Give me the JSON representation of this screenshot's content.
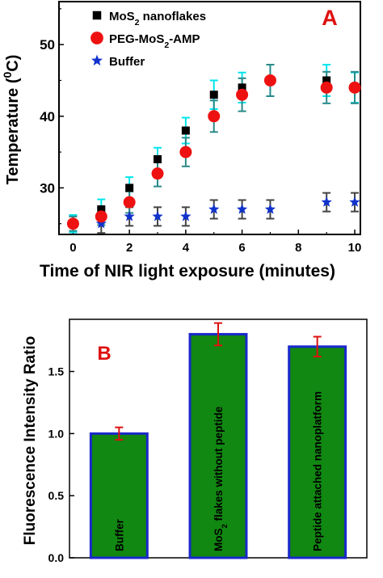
{
  "chart_data": [
    {
      "type": "scatter",
      "panel_label": "A",
      "xlabel": "Time of NIR light exposure (minutes)",
      "ylabel_parts": [
        "Temperature (",
        "0",
        "C)"
      ],
      "xlim": [
        -0.5,
        10.2
      ],
      "ylim": [
        23.5,
        56
      ],
      "xticks": [
        0,
        2,
        4,
        6,
        8,
        10
      ],
      "yticks": [
        30,
        40,
        50
      ],
      "legend_position": "top-left",
      "series": [
        {
          "name_parts": [
            "MoS",
            "2",
            " nanoflakes"
          ],
          "marker": "square",
          "color": "#000000",
          "error_color": "#00e5ee",
          "x": [
            0,
            1,
            2,
            3,
            4,
            5,
            6,
            7,
            9,
            10
          ],
          "y": [
            25,
            27,
            30,
            34,
            38,
            43,
            44,
            45,
            45,
            44
          ],
          "err": [
            1.2,
            1.4,
            1.5,
            1.6,
            1.8,
            2.0,
            2.1,
            2.2,
            2.2,
            2.1
          ]
        },
        {
          "name_parts": [
            "PEG-MoS",
            "2",
            "-AMP"
          ],
          "marker": "circle",
          "color": "#ee1111",
          "error_color": "#2a8a8a",
          "x": [
            0,
            1,
            2,
            3,
            4,
            5,
            6,
            7,
            9,
            10
          ],
          "y": [
            25,
            26,
            28,
            32,
            35,
            40,
            43,
            45,
            44,
            44
          ],
          "err": [
            1.0,
            1.2,
            1.5,
            1.8,
            2.0,
            2.2,
            2.3,
            2.2,
            2.2,
            2.2
          ]
        },
        {
          "name_parts": [
            "Buffer"
          ],
          "marker": "star",
          "color": "#1133cc",
          "error_color": "#444444",
          "x": [
            0,
            1,
            2,
            3,
            4,
            5,
            6,
            7,
            9,
            10
          ],
          "y": [
            25,
            25,
            26,
            26,
            26,
            27,
            27,
            27,
            28,
            28
          ],
          "err": [
            1.2,
            1.3,
            1.3,
            1.3,
            1.3,
            1.3,
            1.3,
            1.3,
            1.3,
            1.3
          ]
        }
      ]
    },
    {
      "type": "bar",
      "panel_label": "B",
      "ylabel": "Fluorescence Intensity Ratio",
      "ylim": [
        0,
        1.92
      ],
      "yticks": [
        "0.0",
        "0.5",
        "1.0",
        "1.5"
      ],
      "bar_color": "#118811",
      "bar_edge_color": "#1a28cc",
      "error_color": "#dd1111",
      "bars": [
        {
          "label_parts": [
            "Buffer"
          ],
          "value": 1.0,
          "err": 0.05
        },
        {
          "label_parts": [
            "MoS",
            "2",
            " flakes without peptide"
          ],
          "value": 1.8,
          "err": 0.09
        },
        {
          "label_parts": [
            "Peptide attached nanoplatform"
          ],
          "value": 1.7,
          "err": 0.08
        }
      ]
    }
  ]
}
